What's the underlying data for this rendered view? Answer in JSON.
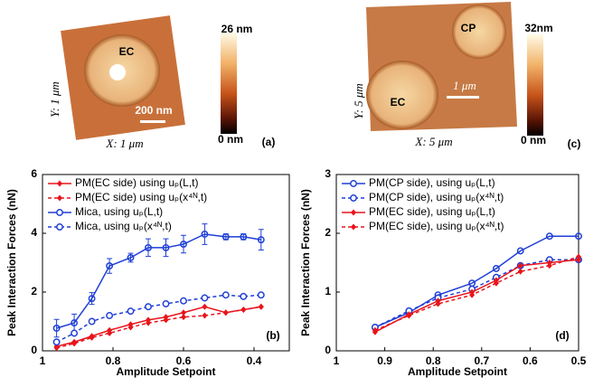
{
  "panels": [
    {
      "label": "(a)",
      "colorbar_max": "26 nm",
      "colorbar_min": "0 nm",
      "domains": [
        "EC"
      ],
      "scale_bar": "200 nm",
      "y_size": "Y: 1 μm",
      "x_size": "X: 1 μm"
    },
    {
      "label": "(c)",
      "colorbar_max": "32nm",
      "colorbar_min": "0 nm",
      "domains": [
        "CP",
        "EC"
      ],
      "scale_bar": "1 μm",
      "y_size": "Y: 5 μm",
      "x_size": "X: 5 μm"
    }
  ],
  "chart_data": [
    {
      "type": "line",
      "panel_label": "(b)",
      "x_label": "Amplitude Setpoint",
      "y_label": "Peak Interaction Forces (nN)",
      "xlim": [
        1,
        0.3
      ],
      "xticks": [
        1,
        0.8,
        0.6,
        0.4
      ],
      "ylim": [
        0,
        6
      ],
      "yticks": [
        0,
        2,
        4,
        6
      ],
      "x": [
        0.96,
        0.91,
        0.86,
        0.81,
        0.75,
        0.7,
        0.65,
        0.6,
        0.54,
        0.48,
        0.43,
        0.38
      ],
      "series": [
        {
          "name": "PM(EC side) using uₚ(L,t)",
          "color": "#e8141b",
          "dashed": false,
          "marker": "diamond",
          "values": [
            0.15,
            0.3,
            0.5,
            0.7,
            0.9,
            1.05,
            1.15,
            1.3,
            1.5,
            1.3,
            1.4,
            1.5
          ]
        },
        {
          "name": "PM(EC side) using uₚ(x⁴ᴺ,t)",
          "color": "#e8141b",
          "dashed": true,
          "marker": "diamond",
          "values": [
            0.1,
            0.25,
            0.45,
            0.6,
            0.8,
            0.95,
            1.05,
            1.15,
            1.2,
            1.3,
            1.4,
            1.5
          ]
        },
        {
          "name": "Mica, using uₚ(L,t)",
          "color": "#1f3fd6",
          "dashed": false,
          "marker": "circle",
          "values": [
            0.77,
            0.95,
            1.78,
            2.89,
            3.17,
            3.51,
            3.51,
            3.63,
            3.97,
            3.88,
            3.88,
            3.78
          ],
          "errors": [
            0.3,
            0.3,
            0.2,
            0.25,
            0.15,
            0.3,
            0.3,
            0.3,
            0.35,
            0.1,
            0.1,
            0.35
          ]
        },
        {
          "name": "Mica, using uₚ(x⁴ᴺ,t)",
          "color": "#1f3fd6",
          "dashed": true,
          "marker": "circle",
          "values": [
            0.3,
            0.6,
            1.0,
            1.2,
            1.35,
            1.5,
            1.6,
            1.7,
            1.8,
            1.9,
            1.85,
            1.9
          ]
        }
      ]
    },
    {
      "type": "line",
      "panel_label": "(d)",
      "x_label": "Amplitude Setpoint",
      "y_label": "Peak Interaction Forces (nN)",
      "xlim": [
        1,
        0.5
      ],
      "xticks": [
        1,
        0.9,
        0.8,
        0.7,
        0.6,
        0.5
      ],
      "ylim": [
        0,
        3
      ],
      "yticks": [
        0,
        1,
        2,
        3
      ],
      "x": [
        0.92,
        0.85,
        0.79,
        0.72,
        0.67,
        0.62,
        0.56,
        0.5
      ],
      "series": [
        {
          "name": "PM(CP side), using uₚ(L,t)",
          "color": "#1f3fd6",
          "dashed": false,
          "marker": "circle",
          "values": [
            0.4,
            0.65,
            0.95,
            1.15,
            1.4,
            1.7,
            1.95,
            1.95
          ]
        },
        {
          "name": "PM(CP side), using uₚ(x⁴ᴺ,t)",
          "color": "#1f3fd6",
          "dashed": true,
          "marker": "circle",
          "values": [
            0.4,
            0.68,
            0.9,
            1.05,
            1.25,
            1.45,
            1.55,
            1.55
          ]
        },
        {
          "name": "PM(EC side), using uₚ(L,t)",
          "color": "#e8141b",
          "dashed": false,
          "marker": "diamond",
          "values": [
            0.32,
            0.62,
            0.85,
            1.0,
            1.2,
            1.45,
            1.5,
            1.55
          ]
        },
        {
          "name": "PM(EC side), using uₚ(x⁴ᴺ,t)",
          "color": "#e8141b",
          "dashed": true,
          "marker": "diamond",
          "values": [
            0.35,
            0.6,
            0.8,
            0.95,
            1.15,
            1.35,
            1.45,
            1.6
          ]
        }
      ]
    }
  ]
}
